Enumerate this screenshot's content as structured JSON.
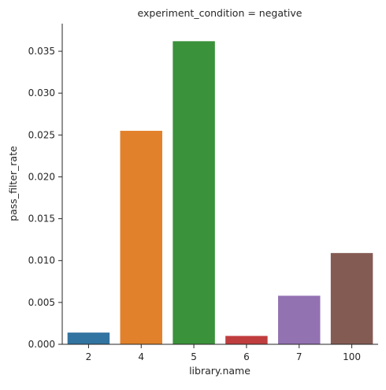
{
  "chart_data": {
    "type": "bar",
    "title": "experiment_condition = negative",
    "xlabel": "library.name",
    "ylabel": "pass_filter_rate",
    "categories": [
      "2",
      "4",
      "5",
      "6",
      "7",
      "100"
    ],
    "values": [
      0.0014,
      0.0255,
      0.0362,
      0.001,
      0.0058,
      0.0109
    ],
    "colors": [
      "#3274a1",
      "#e1812c",
      "#3a923a",
      "#c03d3e",
      "#9372b2",
      "#845b53"
    ],
    "ylim": [
      0,
      0.0383
    ],
    "yticks": [
      0.0,
      0.005,
      0.01,
      0.015,
      0.02,
      0.025,
      0.03,
      0.035
    ],
    "ytick_labels": [
      "0.000",
      "0.005",
      "0.010",
      "0.015",
      "0.020",
      "0.025",
      "0.030",
      "0.035"
    ],
    "grid": false,
    "legend": "none"
  }
}
